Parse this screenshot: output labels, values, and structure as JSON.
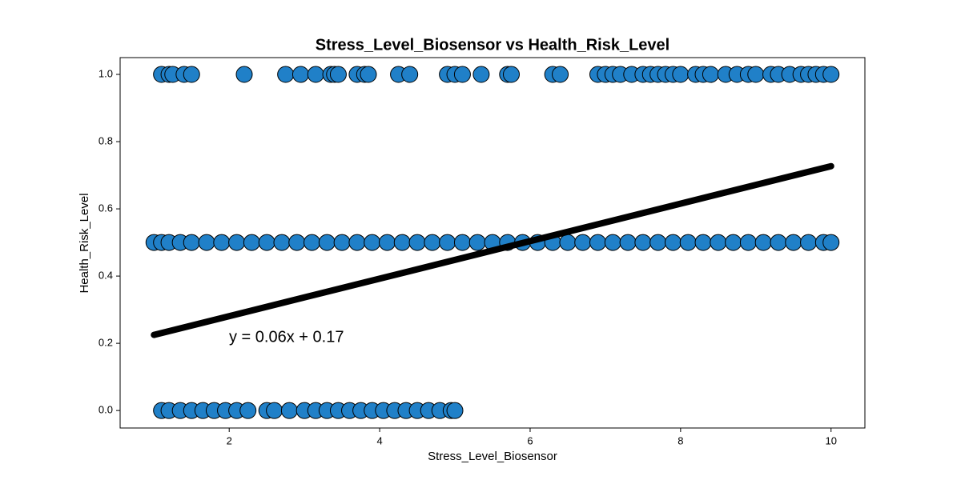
{
  "chart_data": {
    "type": "scatter",
    "title": "Stress_Level_Biosensor vs Health_Risk_Level",
    "x_label": "Stress_Level_Biosensor",
    "y_label": "Health_Risk_Level",
    "color": "#2080c8",
    "edgecolor": "#000000",
    "x": [
      1.1,
      1.2,
      1.25,
      1.4,
      1.5,
      2.2,
      2.75,
      2.95,
      3.15,
      3.35,
      3.4,
      3.45,
      3.7,
      3.8,
      3.85,
      4.25,
      4.4,
      4.9,
      5.0,
      5.1,
      5.35,
      5.7,
      5.75,
      6.3,
      6.4,
      6.9,
      7.0,
      7.1,
      7.2,
      7.35,
      7.5,
      7.6,
      7.7,
      7.8,
      7.9,
      8.0,
      8.2,
      8.3,
      8.4,
      8.6,
      8.75,
      8.9,
      9.0,
      9.2,
      9.3,
      9.45,
      9.6,
      9.7,
      9.8,
      9.9,
      10.0,
      1.0,
      1.1,
      1.2,
      1.35,
      1.5,
      1.7,
      1.9,
      2.1,
      2.3,
      2.5,
      2.7,
      2.9,
      3.1,
      3.3,
      3.5,
      3.7,
      3.9,
      4.1,
      4.3,
      4.5,
      4.7,
      4.9,
      5.1,
      5.3,
      5.5,
      5.7,
      5.9,
      6.1,
      6.3,
      6.5,
      6.7,
      6.9,
      7.1,
      7.3,
      7.5,
      7.7,
      7.9,
      8.1,
      8.3,
      8.5,
      8.7,
      8.9,
      9.1,
      9.3,
      9.5,
      9.7,
      9.9,
      10.0,
      1.1,
      1.2,
      1.35,
      1.5,
      1.65,
      1.8,
      1.95,
      2.1,
      2.25,
      2.5,
      2.6,
      2.8,
      3.0,
      3.15,
      3.3,
      3.45,
      3.6,
      3.75,
      3.9,
      4.05,
      4.2,
      4.35,
      4.5,
      4.65,
      4.8,
      4.95,
      5.0
    ],
    "values": [
      1,
      1,
      1,
      1,
      1,
      1,
      1,
      1,
      1,
      1,
      1,
      1,
      1,
      1,
      1,
      1,
      1,
      1,
      1,
      1,
      1,
      1,
      1,
      1,
      1,
      1,
      1,
      1,
      1,
      1,
      1,
      1,
      1,
      1,
      1,
      1,
      1,
      1,
      1,
      1,
      1,
      1,
      1,
      1,
      1,
      1,
      1,
      1,
      1,
      1,
      1,
      0.5,
      0.5,
      0.5,
      0.5,
      0.5,
      0.5,
      0.5,
      0.5,
      0.5,
      0.5,
      0.5,
      0.5,
      0.5,
      0.5,
      0.5,
      0.5,
      0.5,
      0.5,
      0.5,
      0.5,
      0.5,
      0.5,
      0.5,
      0.5,
      0.5,
      0.5,
      0.5,
      0.5,
      0.5,
      0.5,
      0.5,
      0.5,
      0.5,
      0.5,
      0.5,
      0.5,
      0.5,
      0.5,
      0.5,
      0.5,
      0.5,
      0.5,
      0.5,
      0.5,
      0.5,
      0.5,
      0.5,
      0.5,
      0,
      0,
      0,
      0,
      0,
      0,
      0,
      0,
      0,
      0,
      0,
      0,
      0,
      0,
      0,
      0,
      0,
      0,
      0,
      0,
      0,
      0,
      0,
      0,
      0,
      0,
      0
    ],
    "fit": {
      "x": [
        1,
        10
      ],
      "values": [
        0.225,
        0.727
      ],
      "color": "#000000"
    },
    "annotation": "y = 0.06x + 0.17",
    "xlim": [
      0.55,
      10.45
    ],
    "ylim": [
      -0.052,
      1.05
    ],
    "xticks": [
      2,
      4,
      6,
      8,
      10
    ],
    "yticks": [
      {
        "value": 0,
        "label": "0.0"
      },
      {
        "value": 0.2,
        "label": "0.2"
      },
      {
        "value": 0.4,
        "label": "0.4"
      },
      {
        "value": 0.6,
        "label": "0.6"
      },
      {
        "value": 0.8,
        "label": "0.8"
      },
      {
        "value": 1,
        "label": "1.0"
      }
    ],
    "grid": false
  }
}
